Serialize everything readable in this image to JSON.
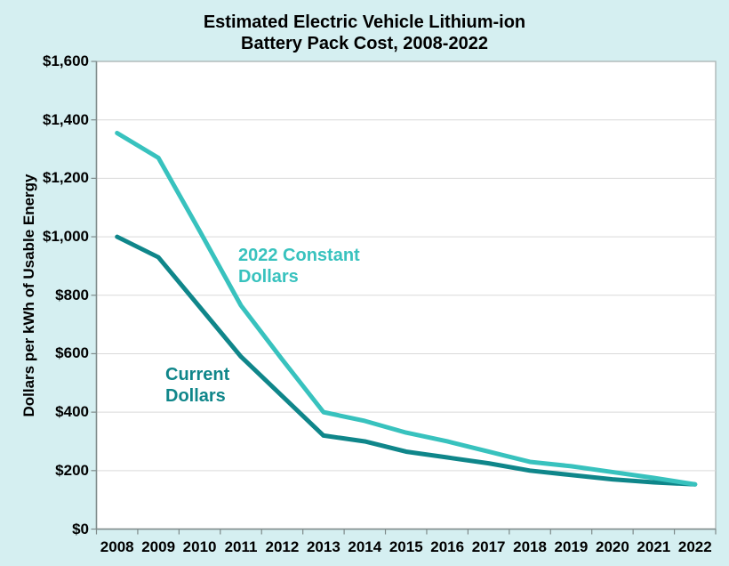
{
  "title": {
    "line1": "Estimated Electric Vehicle Lithium-ion",
    "line2": "Battery Pack Cost, 2008-2022"
  },
  "colors": {
    "background": "#d5eff1",
    "plot_bg": "#ffffff",
    "frame": "#a9b2b2",
    "axis": "#7e8a8a",
    "grid": "#d9d9d9",
    "constant_series": "#38c2be",
    "current_series": "#0f868a",
    "text": "#000000"
  },
  "annotations": {
    "constant": {
      "line1": "2022 Constant",
      "line2": "Dollars"
    },
    "current": {
      "line1": "Current",
      "line2": "Dollars"
    }
  },
  "chart_data": {
    "type": "line",
    "title": "Estimated Electric Vehicle Lithium-ion Battery Pack Cost, 2008-2022",
    "xlabel": "",
    "ylabel": "Dollars per kWh of Usable Energy",
    "ylim": [
      0,
      1600
    ],
    "ytick_interval": 200,
    "grid": "horizontal gridlines only",
    "legend": "inline text annotations near lines",
    "x": [
      2008,
      2009,
      2010,
      2011,
      2012,
      2013,
      2014,
      2015,
      2016,
      2017,
      2018,
      2019,
      2020,
      2021,
      2022
    ],
    "x_tick_labels": [
      "2008",
      "2009",
      "2010",
      "2011",
      "2012",
      "2013",
      "2014",
      "2015",
      "2016",
      "2017",
      "2018",
      "2019",
      "2020",
      "2021",
      "2022"
    ],
    "y_tick_labels": [
      "$0",
      "$200",
      "$400",
      "$600",
      "$800",
      "$1,000",
      "$1,200",
      "$1,400",
      "$1,600"
    ],
    "series": [
      {
        "name": "2022 Constant Dollars",
        "color": "#38c2be",
        "values": [
          1355,
          1270,
          1020,
          765,
          580,
          400,
          370,
          330,
          300,
          265,
          230,
          215,
          195,
          175,
          153
        ]
      },
      {
        "name": "Current Dollars",
        "color": "#0f868a",
        "values": [
          1000,
          930,
          760,
          590,
          455,
          320,
          300,
          265,
          245,
          225,
          200,
          185,
          170,
          160,
          153
        ]
      }
    ]
  }
}
